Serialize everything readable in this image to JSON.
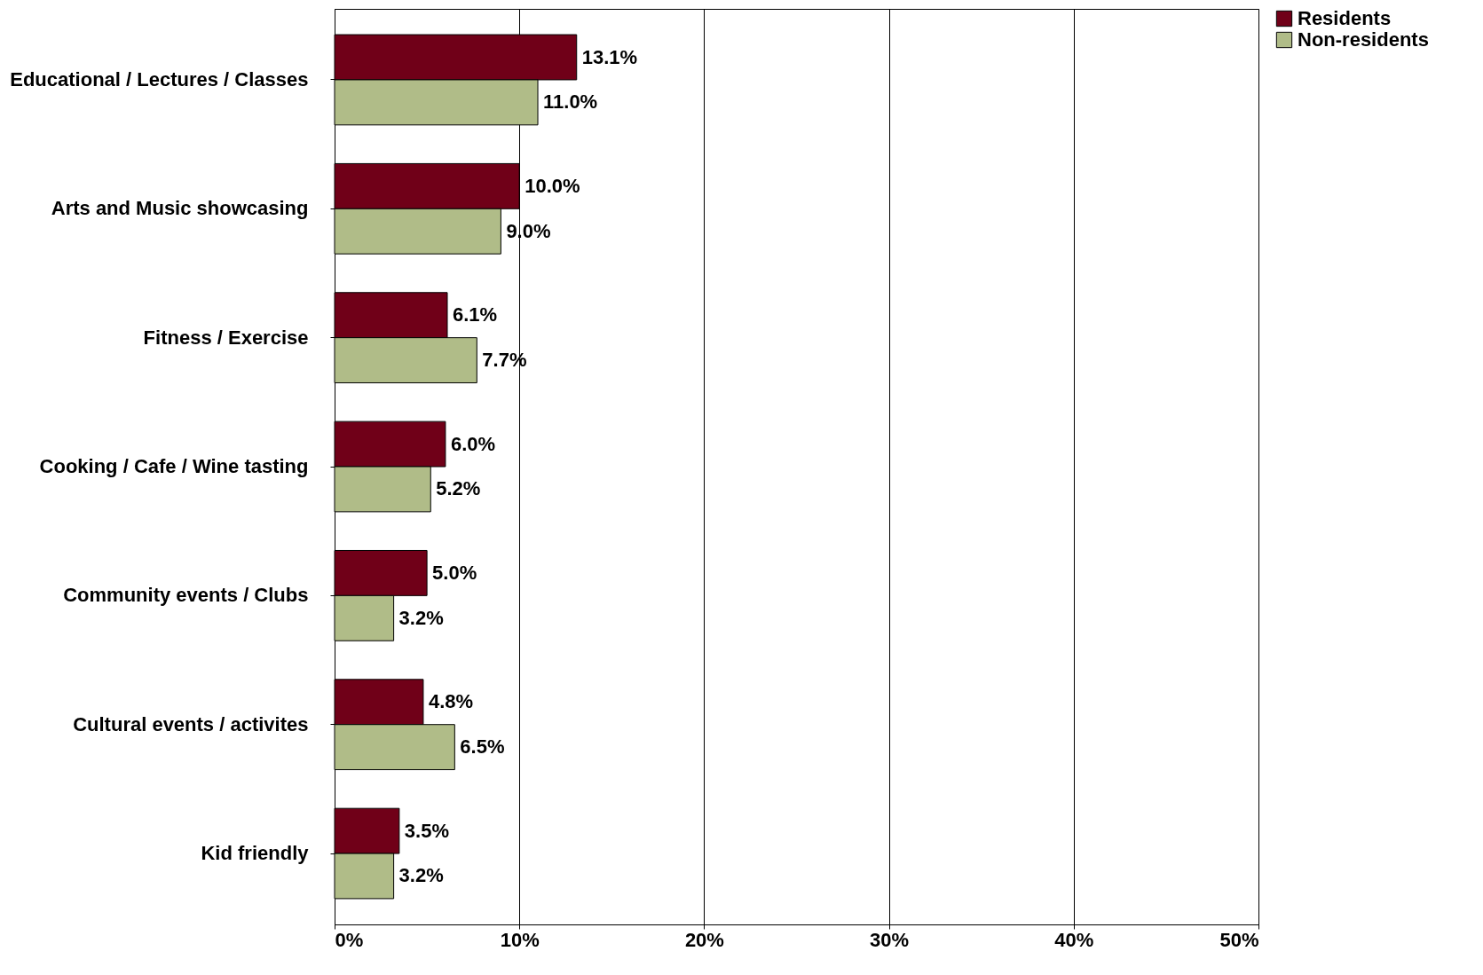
{
  "chart_data": {
    "type": "bar",
    "orientation": "horizontal",
    "categories": [
      "Educational / Lectures / Classes",
      "Arts and Music showcasing",
      "Fitness / Exercise",
      "Cooking / Cafe / Wine tasting",
      "Community events / Clubs",
      "Cultural events / activites",
      "Kid friendly"
    ],
    "series": [
      {
        "name": "Residents",
        "color": "#700018",
        "values": [
          13.1,
          10.0,
          6.1,
          6.0,
          5.0,
          4.8,
          3.5
        ],
        "value_labels": [
          "13.1%",
          "10.0%",
          "6.1%",
          "6.0%",
          "5.0%",
          "4.8%",
          "3.5%"
        ]
      },
      {
        "name": "Non-residents",
        "color": "#b0bc88",
        "values": [
          11.0,
          9.0,
          7.7,
          5.2,
          3.2,
          6.5,
          3.2
        ],
        "value_labels": [
          "11.0%",
          "9.0%",
          "7.7%",
          "5.2%",
          "3.2%",
          "6.5%",
          "3.2%"
        ]
      }
    ],
    "xlim": [
      0,
      50
    ],
    "xticks": [
      {
        "value": 0,
        "label": "0%"
      },
      {
        "value": 10,
        "label": "10%"
      },
      {
        "value": 20,
        "label": "20%"
      },
      {
        "value": 30,
        "label": "30%"
      },
      {
        "value": 40,
        "label": "40%"
      },
      {
        "value": 50,
        "label": "50%"
      }
    ],
    "grid": "x",
    "legend": "right"
  }
}
